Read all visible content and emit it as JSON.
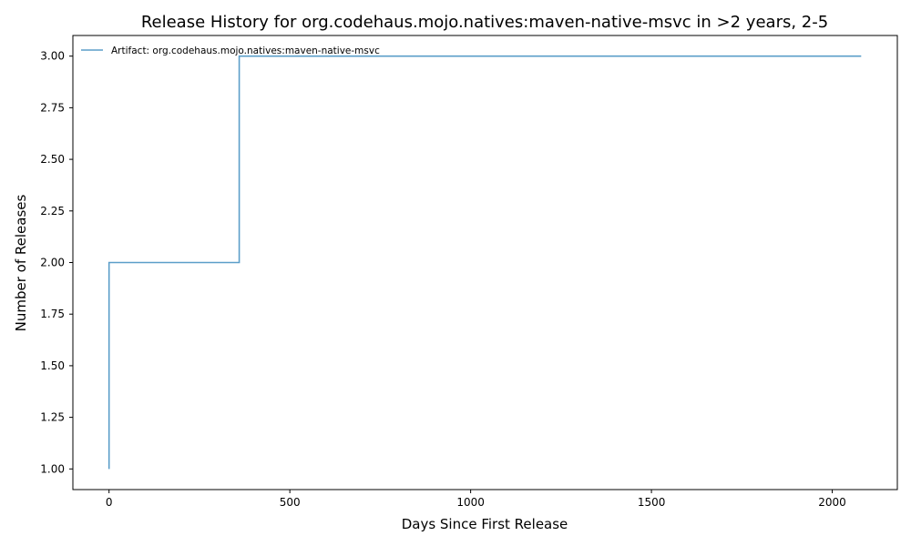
{
  "chart_data": {
    "type": "line",
    "step": "post",
    "title": "Release History for org.codehaus.mojo.natives:maven-native-msvc in >2 years, 2-5",
    "xlabel": "Days Since First Release",
    "ylabel": "Number of Releases",
    "xlim": [
      -100,
      2180
    ],
    "ylim": [
      0.9,
      3.1
    ],
    "xticks": [
      0,
      500,
      1000,
      1500,
      2000
    ],
    "xtick_labels": [
      "0",
      "500",
      "1000",
      "1500",
      "2000"
    ],
    "yticks": [
      1.0,
      1.25,
      1.5,
      1.75,
      2.0,
      2.25,
      2.5,
      2.75,
      3.0
    ],
    "ytick_labels": [
      "1.00",
      "1.25",
      "1.50",
      "1.75",
      "2.00",
      "2.25",
      "2.50",
      "2.75",
      "3.00"
    ],
    "grid": false,
    "legend_position": "upper-left",
    "series": [
      {
        "name": "Artifact: org.codehaus.mojo.natives:maven-native-msvc",
        "color": "#5b9ec9",
        "x": [
          0,
          0,
          360,
          2080
        ],
        "y": [
          1,
          2,
          3,
          3
        ]
      }
    ]
  }
}
